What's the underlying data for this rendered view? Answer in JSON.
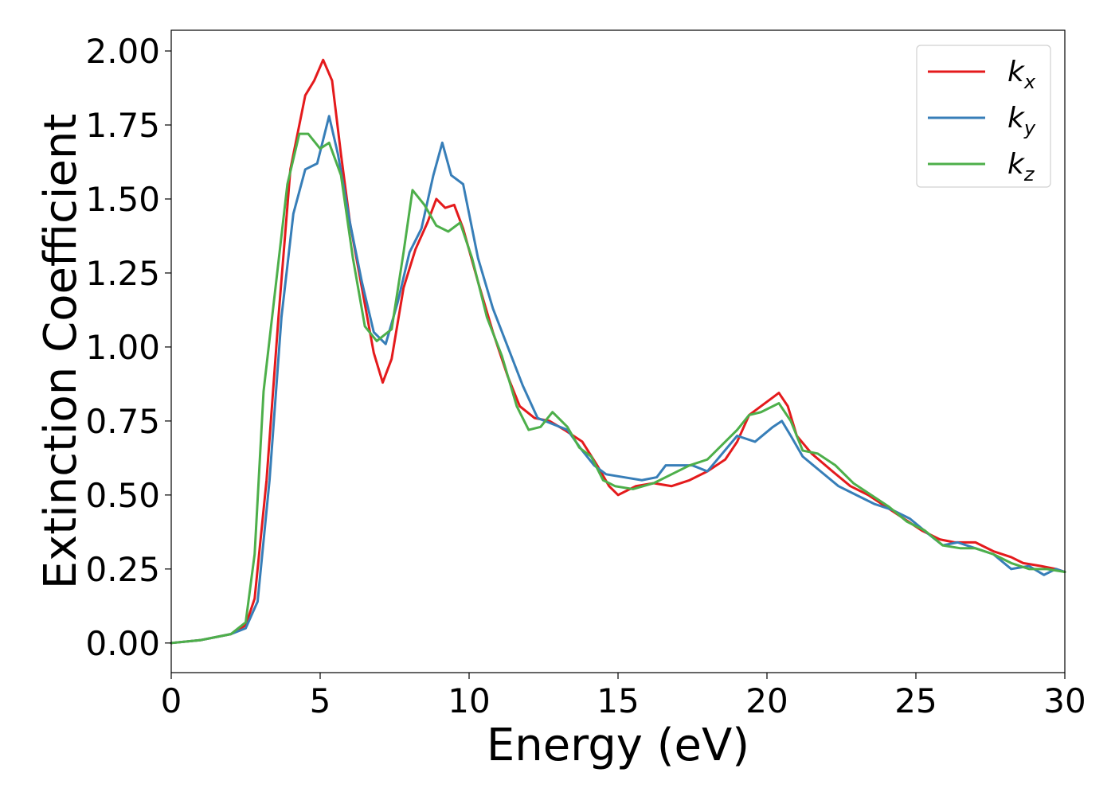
{
  "chart_data": {
    "type": "line",
    "xlabel": "Energy (eV)",
    "ylabel": "Extinction Coefficient",
    "xlim": [
      0,
      30
    ],
    "ylim": [
      -0.1,
      2.07
    ],
    "x_ticks": [
      0,
      5,
      10,
      15,
      20,
      25,
      30
    ],
    "x_tick_labels": [
      "0",
      "5",
      "10",
      "15",
      "20",
      "25",
      "30"
    ],
    "y_ticks": [
      0.0,
      0.25,
      0.5,
      0.75,
      1.0,
      1.25,
      1.5,
      1.75,
      2.0
    ],
    "y_tick_labels": [
      "0.00",
      "0.25",
      "0.50",
      "0.75",
      "1.00",
      "1.25",
      "1.50",
      "1.75",
      "2.00"
    ],
    "grid": false,
    "legend_position": "top-right",
    "series": [
      {
        "name": "k_x",
        "label_base": "k",
        "label_sub": "x",
        "color": "#e41a1c",
        "points": [
          [
            0,
            0
          ],
          [
            1,
            0.01
          ],
          [
            2,
            0.03
          ],
          [
            2.5,
            0.06
          ],
          [
            2.8,
            0.15
          ],
          [
            3.2,
            0.55
          ],
          [
            3.6,
            1.1
          ],
          [
            4,
            1.6
          ],
          [
            4.5,
            1.85
          ],
          [
            4.8,
            1.9
          ],
          [
            5.1,
            1.97
          ],
          [
            5.4,
            1.9
          ],
          [
            5.7,
            1.65
          ],
          [
            6,
            1.42
          ],
          [
            6.4,
            1.2
          ],
          [
            6.8,
            0.98
          ],
          [
            7.1,
            0.88
          ],
          [
            7.4,
            0.96
          ],
          [
            7.8,
            1.2
          ],
          [
            8.2,
            1.33
          ],
          [
            8.6,
            1.42
          ],
          [
            8.9,
            1.5
          ],
          [
            9.2,
            1.47
          ],
          [
            9.5,
            1.48
          ],
          [
            9.8,
            1.4
          ],
          [
            10.3,
            1.22
          ],
          [
            10.8,
            1.05
          ],
          [
            11.3,
            0.9
          ],
          [
            11.7,
            0.8
          ],
          [
            12.2,
            0.76
          ],
          [
            12.7,
            0.75
          ],
          [
            13.2,
            0.72
          ],
          [
            13.8,
            0.68
          ],
          [
            14.3,
            0.6
          ],
          [
            14.7,
            0.53
          ],
          [
            15,
            0.5
          ],
          [
            15.6,
            0.53
          ],
          [
            16.2,
            0.54
          ],
          [
            16.8,
            0.53
          ],
          [
            17.4,
            0.55
          ],
          [
            18,
            0.58
          ],
          [
            18.6,
            0.62
          ],
          [
            19,
            0.68
          ],
          [
            19.4,
            0.77
          ],
          [
            19.8,
            0.8
          ],
          [
            20.2,
            0.83
          ],
          [
            20.4,
            0.845
          ],
          [
            20.7,
            0.8
          ],
          [
            21,
            0.7
          ],
          [
            21.5,
            0.64
          ],
          [
            22.2,
            0.58
          ],
          [
            22.8,
            0.53
          ],
          [
            23.4,
            0.5
          ],
          [
            24,
            0.46
          ],
          [
            24.6,
            0.42
          ],
          [
            25.2,
            0.38
          ],
          [
            25.8,
            0.35
          ],
          [
            26.3,
            0.34
          ],
          [
            27,
            0.34
          ],
          [
            27.6,
            0.31
          ],
          [
            28.2,
            0.29
          ],
          [
            28.6,
            0.27
          ],
          [
            29.2,
            0.26
          ],
          [
            29.7,
            0.25
          ],
          [
            30,
            0.24
          ]
        ]
      },
      {
        "name": "k_y",
        "label_base": "k",
        "label_sub": "y",
        "color": "#377eb8",
        "points": [
          [
            0,
            0
          ],
          [
            1,
            0.01
          ],
          [
            2,
            0.03
          ],
          [
            2.5,
            0.05
          ],
          [
            2.9,
            0.14
          ],
          [
            3.3,
            0.55
          ],
          [
            3.7,
            1.1
          ],
          [
            4.1,
            1.45
          ],
          [
            4.5,
            1.6
          ],
          [
            4.9,
            1.62
          ],
          [
            5.3,
            1.78
          ],
          [
            5.6,
            1.65
          ],
          [
            6,
            1.42
          ],
          [
            6.4,
            1.22
          ],
          [
            6.8,
            1.05
          ],
          [
            7.2,
            1.01
          ],
          [
            7.6,
            1.15
          ],
          [
            8,
            1.32
          ],
          [
            8.4,
            1.4
          ],
          [
            8.8,
            1.58
          ],
          [
            9.1,
            1.69
          ],
          [
            9.4,
            1.58
          ],
          [
            9.8,
            1.55
          ],
          [
            10.3,
            1.3
          ],
          [
            10.8,
            1.13
          ],
          [
            11.3,
            1.0
          ],
          [
            11.8,
            0.87
          ],
          [
            12.3,
            0.76
          ],
          [
            12.8,
            0.74
          ],
          [
            13.3,
            0.72
          ],
          [
            13.8,
            0.65
          ],
          [
            14.2,
            0.6
          ],
          [
            14.6,
            0.57
          ],
          [
            15.2,
            0.56
          ],
          [
            15.8,
            0.55
          ],
          [
            16.3,
            0.56
          ],
          [
            16.6,
            0.6
          ],
          [
            17,
            0.6
          ],
          [
            17.5,
            0.6
          ],
          [
            18,
            0.58
          ],
          [
            18.5,
            0.64
          ],
          [
            19,
            0.7
          ],
          [
            19.6,
            0.68
          ],
          [
            20.2,
            0.73
          ],
          [
            20.5,
            0.75
          ],
          [
            20.8,
            0.7
          ],
          [
            21.2,
            0.63
          ],
          [
            21.8,
            0.58
          ],
          [
            22.4,
            0.53
          ],
          [
            23,
            0.5
          ],
          [
            23.6,
            0.47
          ],
          [
            24.2,
            0.45
          ],
          [
            24.8,
            0.42
          ],
          [
            25.4,
            0.37
          ],
          [
            25.9,
            0.33
          ],
          [
            26.4,
            0.34
          ],
          [
            27,
            0.32
          ],
          [
            27.6,
            0.3
          ],
          [
            28.2,
            0.25
          ],
          [
            28.8,
            0.26
          ],
          [
            29.3,
            0.23
          ],
          [
            29.7,
            0.25
          ],
          [
            30,
            0.24
          ]
        ]
      },
      {
        "name": "k_z",
        "label_base": "k",
        "label_sub": "z",
        "color": "#4daf4a",
        "points": [
          [
            0,
            0
          ],
          [
            1,
            0.01
          ],
          [
            2,
            0.03
          ],
          [
            2.5,
            0.07
          ],
          [
            2.8,
            0.3
          ],
          [
            3.1,
            0.85
          ],
          [
            3.5,
            1.2
          ],
          [
            3.9,
            1.55
          ],
          [
            4.3,
            1.72
          ],
          [
            4.6,
            1.72
          ],
          [
            5,
            1.67
          ],
          [
            5.3,
            1.69
          ],
          [
            5.7,
            1.58
          ],
          [
            6.1,
            1.3
          ],
          [
            6.5,
            1.07
          ],
          [
            6.9,
            1.02
          ],
          [
            7.4,
            1.06
          ],
          [
            7.8,
            1.32
          ],
          [
            8.1,
            1.53
          ],
          [
            8.5,
            1.48
          ],
          [
            8.9,
            1.41
          ],
          [
            9.3,
            1.39
          ],
          [
            9.7,
            1.42
          ],
          [
            10.1,
            1.3
          ],
          [
            10.6,
            1.1
          ],
          [
            11.1,
            0.97
          ],
          [
            11.6,
            0.8
          ],
          [
            12,
            0.72
          ],
          [
            12.4,
            0.73
          ],
          [
            12.8,
            0.78
          ],
          [
            13.3,
            0.73
          ],
          [
            13.7,
            0.66
          ],
          [
            14.1,
            0.63
          ],
          [
            14.5,
            0.55
          ],
          [
            14.9,
            0.53
          ],
          [
            15.5,
            0.52
          ],
          [
            16.2,
            0.54
          ],
          [
            16.8,
            0.57
          ],
          [
            17.4,
            0.6
          ],
          [
            18,
            0.62
          ],
          [
            18.6,
            0.68
          ],
          [
            19,
            0.72
          ],
          [
            19.4,
            0.77
          ],
          [
            19.8,
            0.78
          ],
          [
            20.4,
            0.81
          ],
          [
            20.8,
            0.75
          ],
          [
            21.2,
            0.65
          ],
          [
            21.7,
            0.64
          ],
          [
            22.3,
            0.6
          ],
          [
            22.9,
            0.54
          ],
          [
            23.5,
            0.5
          ],
          [
            24.1,
            0.46
          ],
          [
            24.7,
            0.41
          ],
          [
            25.3,
            0.38
          ],
          [
            25.9,
            0.33
          ],
          [
            26.5,
            0.32
          ],
          [
            27,
            0.32
          ],
          [
            27.6,
            0.3
          ],
          [
            28.2,
            0.27
          ],
          [
            28.8,
            0.25
          ],
          [
            29.4,
            0.25
          ],
          [
            30,
            0.24
          ]
        ]
      }
    ]
  }
}
